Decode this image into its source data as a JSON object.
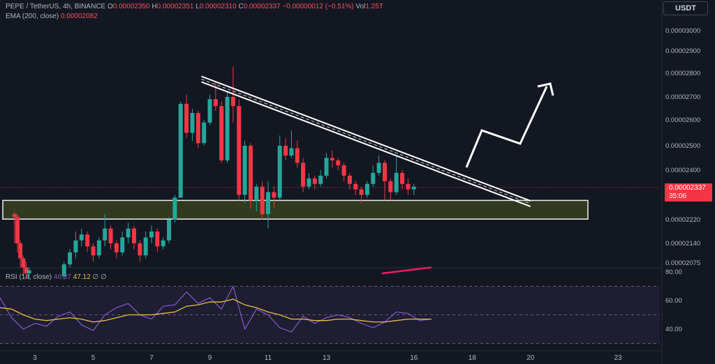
{
  "header": {
    "symbol": "PEPE / TetherUS, 4h, BINANCE",
    "o_label": "O",
    "o_value": "0.00002350",
    "h_label": "H",
    "h_value": "0.00002351",
    "l_label": "L",
    "l_value": "0.00002310",
    "c_label": "C",
    "c_value": "0.00002337",
    "change": "−0.00000012 (−0.51%)",
    "vol_label": "Vol",
    "vol_value": "1.25T"
  },
  "ema_legend": {
    "label": "EMA (200, close)",
    "value": "0.00002082"
  },
  "rsi_legend": {
    "label": "RSI (14, close)",
    "value1": "46.87",
    "value2": "47.12",
    "symbols": "∅ ∅"
  },
  "currency_button": "USDT",
  "price_tag": {
    "price": "0.00002337",
    "countdown": "35:06"
  },
  "colors": {
    "up": "#26a69a",
    "down": "#f23645",
    "rsi": "#7e57c2",
    "rsi_ma": "#e8c13f",
    "ema": "#e91e63",
    "background": "#131722"
  },
  "chart_data": [
    {
      "type": "candlestick",
      "title": "PEPE / TetherUS, 4h, BINANCE",
      "y_tick_labels": [
        "0.00003000",
        "0.00002900",
        "0.00002800",
        "0.00002700",
        "0.00002600",
        "0.00002500",
        "0.00002400",
        "0.00002220",
        "0.00002140",
        "0.00002075"
      ],
      "y_ticks": [
        3e-05,
        2.9e-05,
        2.8e-05,
        2.7e-05,
        2.6e-05,
        2.5e-05,
        2.4e-05,
        2.22e-05,
        2.14e-05,
        2.075e-05
      ],
      "x_tick_labels": [
        "3",
        "5",
        "7",
        "9",
        "11",
        "13",
        "16",
        "18",
        "20",
        "23"
      ],
      "x_ticks": [
        3,
        5,
        7,
        9,
        11,
        13,
        16,
        18,
        20,
        23
      ],
      "support_zone": [
        2.222e-05,
        2.29e-05
      ],
      "trendline": {
        "from": [
          9.0,
          2.775e-05
        ],
        "to": [
          20.0,
          2.278e-05
        ]
      },
      "current_price": 2.337e-05,
      "candles": [
        [
          2.3,
          2.24e-05,
          2.23e-05,
          2.25e-05,
          2.14e-05
        ],
        [
          2.4,
          2.23e-05,
          2.14e-05,
          2.24e-05,
          2.11e-05
        ],
        [
          2.5,
          2.14e-05,
          2.09e-05,
          2.15e-05,
          2.06e-05
        ],
        [
          2.6,
          2.09e-05,
          2.06e-05,
          2.1e-05,
          2.03e-05
        ],
        [
          2.7,
          2.06e-05,
          2.04e-05,
          2.08e-05,
          2.02e-05
        ],
        [
          2.8,
          2.04e-05,
          2.05e-05,
          2.06e-05,
          2.02e-05
        ],
        [
          4.0,
          2.03e-05,
          2.07e-05,
          2.08e-05,
          2.02e-05
        ],
        [
          4.2,
          2.07e-05,
          2.11e-05,
          2.12e-05,
          2.06e-05
        ],
        [
          4.4,
          2.11e-05,
          2.15e-05,
          2.18e-05,
          2.09e-05
        ],
        [
          4.6,
          2.15e-05,
          2.17e-05,
          2.19e-05,
          2.13e-05
        ],
        [
          4.8,
          2.17e-05,
          2.13e-05,
          2.18e-05,
          2.11e-05
        ],
        [
          5.0,
          2.13e-05,
          2.1e-05,
          2.14e-05,
          2.08e-05
        ],
        [
          5.2,
          2.1e-05,
          2.15e-05,
          2.16e-05,
          2.09e-05
        ],
        [
          5.4,
          2.15e-05,
          2.19e-05,
          2.24e-05,
          2.13e-05
        ],
        [
          5.6,
          2.19e-05,
          2.14e-05,
          2.2e-05,
          2.12e-05
        ],
        [
          5.8,
          2.14e-05,
          2.11e-05,
          2.15e-05,
          2.09e-05
        ],
        [
          6.0,
          2.11e-05,
          2.16e-05,
          2.18e-05,
          2.1e-05
        ],
        [
          6.2,
          2.16e-05,
          2.19e-05,
          2.21e-05,
          2.14e-05
        ],
        [
          6.4,
          2.19e-05,
          2.14e-05,
          2.2e-05,
          2.12e-05
        ],
        [
          6.6,
          2.14e-05,
          2.1e-05,
          2.15e-05,
          2.08e-05
        ],
        [
          6.8,
          2.1e-05,
          2.16e-05,
          2.18e-05,
          2.09e-05
        ],
        [
          7.0,
          2.16e-05,
          2.18e-05,
          2.2e-05,
          2.14e-05
        ],
        [
          7.2,
          2.18e-05,
          2.13e-05,
          2.19e-05,
          2.11e-05
        ],
        [
          7.4,
          2.13e-05,
          2.15e-05,
          2.16e-05,
          2.12e-05
        ],
        [
          7.6,
          2.15e-05,
          2.22e-05,
          2.23e-05,
          2.14e-05
        ],
        [
          7.8,
          2.22e-05,
          2.3e-05,
          2.31e-05,
          2.21e-05
        ],
        [
          8.0,
          2.3e-05,
          2.67e-05,
          2.68e-05,
          2.3e-05
        ],
        [
          8.2,
          2.67e-05,
          2.55e-05,
          2.71e-05,
          2.53e-05
        ],
        [
          8.4,
          2.55e-05,
          2.63e-05,
          2.65e-05,
          2.52e-05
        ],
        [
          8.6,
          2.63e-05,
          2.51e-05,
          2.64e-05,
          2.49e-05
        ],
        [
          8.8,
          2.51e-05,
          2.59e-05,
          2.6e-05,
          2.5e-05
        ],
        [
          9.0,
          2.59e-05,
          2.69e-05,
          2.71e-05,
          2.58e-05
        ],
        [
          9.2,
          2.69e-05,
          2.66e-05,
          2.76e-05,
          2.64e-05
        ],
        [
          9.4,
          2.66e-05,
          2.44e-05,
          2.68e-05,
          2.43e-05
        ],
        [
          9.6,
          2.44e-05,
          2.7e-05,
          2.72e-05,
          2.43e-05
        ],
        [
          9.8,
          2.7e-05,
          2.66e-05,
          2.83e-05,
          2.59e-05
        ],
        [
          10.0,
          2.66e-05,
          2.31e-05,
          2.69e-05,
          2.29e-05
        ],
        [
          10.2,
          2.31e-05,
          2.5e-05,
          2.52e-05,
          2.28e-05
        ],
        [
          10.4,
          2.5e-05,
          2.29e-05,
          2.51e-05,
          2.26e-05
        ],
        [
          10.6,
          2.29e-05,
          2.34e-05,
          2.35e-05,
          2.25e-05
        ],
        [
          10.8,
          2.34e-05,
          2.24e-05,
          2.36e-05,
          2.22e-05
        ],
        [
          11.0,
          2.24e-05,
          2.32e-05,
          2.36e-05,
          2.19e-05
        ],
        [
          11.2,
          2.32e-05,
          2.3e-05,
          2.34e-05,
          2.26e-05
        ],
        [
          11.4,
          2.3e-05,
          2.5e-05,
          2.54e-05,
          2.29e-05
        ],
        [
          11.6,
          2.5e-05,
          2.46e-05,
          2.53e-05,
          2.44e-05
        ],
        [
          11.8,
          2.46e-05,
          2.49e-05,
          2.56e-05,
          2.45e-05
        ],
        [
          12.0,
          2.49e-05,
          2.43e-05,
          2.52e-05,
          2.41e-05
        ],
        [
          12.2,
          2.43e-05,
          2.34e-05,
          2.45e-05,
          2.32e-05
        ],
        [
          12.4,
          2.34e-05,
          2.37e-05,
          2.39e-05,
          2.33e-05
        ],
        [
          12.6,
          2.37e-05,
          2.35e-05,
          2.38e-05,
          2.33e-05
        ],
        [
          12.8,
          2.35e-05,
          2.38e-05,
          2.4e-05,
          2.34e-05
        ],
        [
          13.0,
          2.38e-05,
          2.45e-05,
          2.47e-05,
          2.37e-05
        ],
        [
          13.2,
          2.45e-05,
          2.44e-05,
          2.48e-05,
          2.41e-05
        ],
        [
          13.4,
          2.44e-05,
          2.42e-05,
          2.45e-05,
          2.4e-05
        ],
        [
          13.6,
          2.42e-05,
          2.38e-05,
          2.43e-05,
          2.36e-05
        ],
        [
          13.8,
          2.38e-05,
          2.35e-05,
          2.39e-05,
          2.33e-05
        ],
        [
          14.0,
          2.35e-05,
          2.33e-05,
          2.36e-05,
          2.31e-05
        ],
        [
          14.2,
          2.33e-05,
          2.31e-05,
          2.34e-05,
          2.28e-05
        ],
        [
          14.4,
          2.31e-05,
          2.35e-05,
          2.36e-05,
          2.3e-05
        ],
        [
          14.6,
          2.35e-05,
          2.39e-05,
          2.42e-05,
          2.34e-05
        ],
        [
          14.8,
          2.39e-05,
          2.43e-05,
          2.46e-05,
          2.38e-05
        ],
        [
          15.0,
          2.43e-05,
          2.36e-05,
          2.44e-05,
          2.29e-05
        ],
        [
          15.2,
          2.36e-05,
          2.32e-05,
          2.37e-05,
          2.29e-05
        ],
        [
          15.4,
          2.32e-05,
          2.39e-05,
          2.46e-05,
          2.31e-05
        ],
        [
          15.6,
          2.39e-05,
          2.35e-05,
          2.4e-05,
          2.33e-05
        ],
        [
          15.8,
          2.35e-05,
          2.33e-05,
          2.37e-05,
          2.31e-05
        ],
        [
          16.0,
          2.33e-05,
          2.34e-05,
          2.35e-05,
          2.31e-05
        ]
      ],
      "ema": {
        "label": "EMA (200, close)",
        "from": [
          14.9,
          2.04e-05
        ],
        "to": [
          16.6,
          2.06e-05
        ]
      }
    },
    {
      "type": "line",
      "title": "RSI (14, close)",
      "y_tick_labels": [
        "80.00",
        "60.00",
        "40.00"
      ],
      "y_ticks": [
        80,
        60,
        40
      ],
      "bands": [
        70,
        50,
        30
      ],
      "x": [
        1.8,
        2.2,
        2.6,
        3.0,
        3.4,
        3.8,
        4.2,
        4.6,
        5.0,
        5.4,
        5.8,
        6.2,
        6.6,
        7.0,
        7.4,
        7.8,
        8.2,
        8.6,
        9.0,
        9.4,
        9.8,
        10.2,
        10.6,
        11.0,
        11.4,
        11.8,
        12.2,
        12.6,
        13.0,
        13.4,
        13.8,
        14.2,
        14.6,
        15.0,
        15.4,
        15.8,
        16.2,
        16.6
      ],
      "series": [
        {
          "values": [
            62,
            48,
            40,
            44,
            42,
            49,
            52,
            43,
            39,
            50,
            55,
            58,
            50,
            47,
            56,
            57,
            66,
            58,
            62,
            54,
            70,
            40,
            54,
            50,
            41,
            38,
            49,
            44,
            48,
            50,
            48,
            44,
            41,
            45,
            52,
            51,
            46,
            47
          ]
        },
        {
          "values": [
            55,
            54,
            50,
            47,
            46,
            47,
            48,
            47,
            45,
            46,
            48,
            50,
            50,
            50,
            51,
            52,
            56,
            57,
            59,
            59,
            61,
            57,
            55,
            52,
            50,
            47,
            47,
            46,
            46,
            47,
            47,
            46,
            45,
            45,
            46,
            47,
            47,
            47
          ]
        }
      ]
    }
  ]
}
